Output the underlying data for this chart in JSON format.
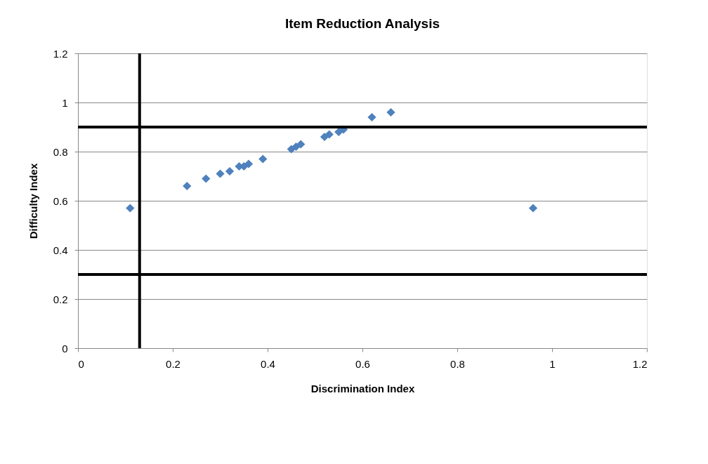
{
  "chart_data": {
    "type": "scatter",
    "title": "Item Reduction Analysis",
    "xlabel": "Discrimination  Index",
    "ylabel": "Difficulty Index",
    "x": [
      0.11,
      0.23,
      0.27,
      0.3,
      0.32,
      0.34,
      0.35,
      0.36,
      0.39,
      0.45,
      0.46,
      0.47,
      0.52,
      0.53,
      0.55,
      0.56,
      0.62,
      0.66,
      0.96
    ],
    "series": [
      {
        "color": "#4f81bd",
        "values": [
          0.57,
          0.66,
          0.69,
          0.71,
          0.72,
          0.74,
          0.74,
          0.75,
          0.77,
          0.81,
          0.82,
          0.83,
          0.86,
          0.87,
          0.88,
          0.89,
          0.94,
          0.96,
          0.57
        ]
      }
    ],
    "xlim": [
      0,
      1.2
    ],
    "xticks": [
      0,
      0.2,
      0.4,
      0.6,
      0.8,
      1,
      1.2
    ],
    "ylim": [
      0,
      1.2
    ],
    "yticks": [
      0,
      0.2,
      0.4,
      0.6,
      0.8,
      1,
      1.2
    ],
    "grid": "y",
    "marker": "diamond",
    "ref_lines": [
      {
        "axis": "x",
        "value": 0.13,
        "color": "#000000"
      },
      {
        "axis": "y",
        "value": 0.9,
        "color": "#000000"
      },
      {
        "axis": "y",
        "value": 0.3,
        "color": "#000000"
      }
    ]
  }
}
